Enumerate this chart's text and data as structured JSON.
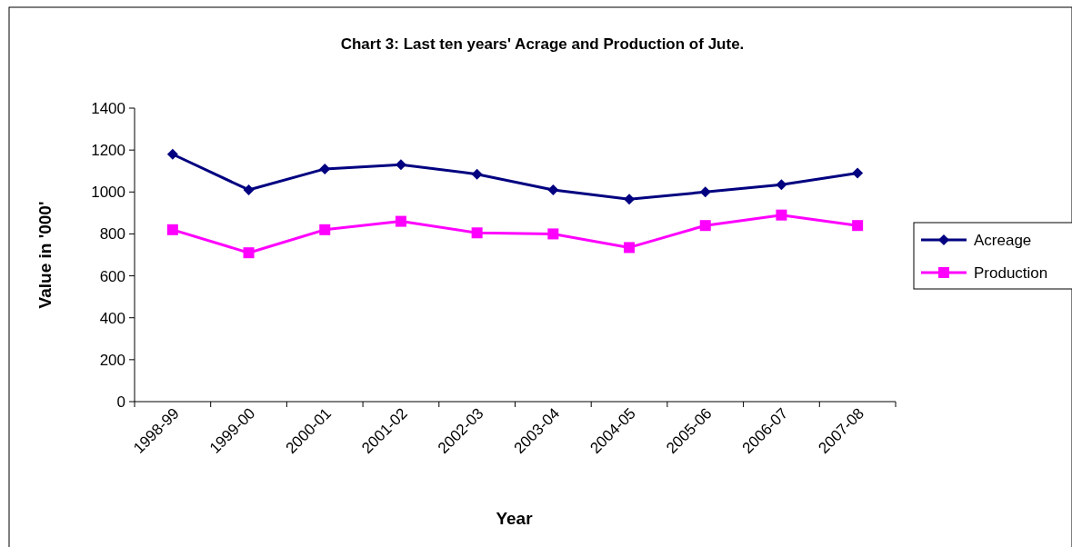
{
  "chart_data": {
    "type": "line",
    "title": "Chart 3: Last ten years' Acrage and Production of Jute.",
    "xlabel": "Year",
    "ylabel": "Value in '000'",
    "categories": [
      "1998-99",
      "1999-00",
      "2000-01",
      "2001-02",
      "2002-03",
      "2003-04",
      "2004-05",
      "2005-06",
      "2006-07",
      "2007-08"
    ],
    "series": [
      {
        "name": "Acreage",
        "color": "#000080",
        "marker": "diamond",
        "values": [
          1180,
          1010,
          1110,
          1130,
          1085,
          1010,
          965,
          1000,
          1035,
          1090
        ]
      },
      {
        "name": "Production",
        "color": "#ff00ff",
        "marker": "square",
        "values": [
          820,
          710,
          820,
          860,
          805,
          800,
          735,
          840,
          890,
          840
        ]
      }
    ],
    "ylim": [
      0,
      1400
    ],
    "yticks": [
      0,
      200,
      400,
      600,
      800,
      1000,
      1200,
      1400
    ],
    "grid": false,
    "legend": "right"
  }
}
